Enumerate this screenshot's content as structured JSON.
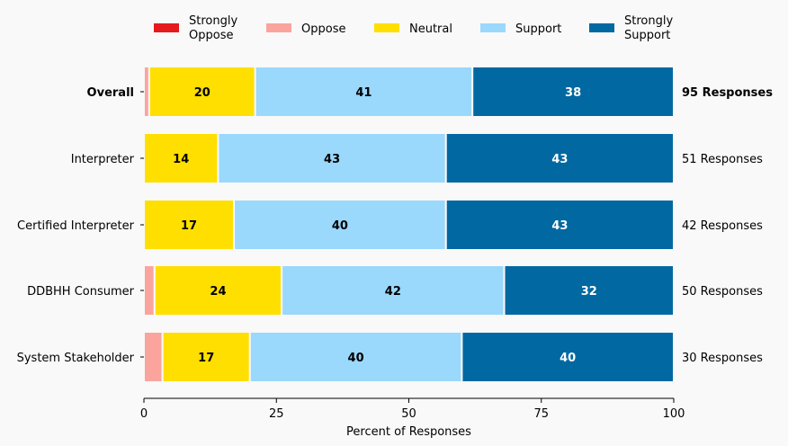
{
  "chart_data": {
    "type": "bar",
    "orientation": "horizontal",
    "stacked": true,
    "categories": [
      "Overall",
      "Interpreter",
      "Certified Interpreter",
      "DDBHH Consumer",
      "System Stakeholder"
    ],
    "response_labels": [
      "95 Responses",
      "51 Responses",
      "42 Responses",
      "50 Responses",
      "30 Responses"
    ],
    "series": [
      {
        "name": "Strongly\nOppose",
        "color": "#e41a1c",
        "values": [
          0,
          0,
          0,
          0,
          0
        ],
        "labels": [
          "",
          "",
          "",
          "",
          ""
        ],
        "label_color": "#000000"
      },
      {
        "name": "Oppose",
        "color": "#fba49d",
        "values": [
          1,
          0,
          0,
          2,
          3.5
        ],
        "labels": [
          "",
          "",
          "",
          "",
          ""
        ],
        "label_color": "#000000"
      },
      {
        "name": "Neutral",
        "color": "#ffdf00",
        "values": [
          20,
          14,
          17,
          24,
          16.5
        ],
        "labels": [
          "20",
          "14",
          "17",
          "24",
          "17"
        ],
        "label_color": "#000000"
      },
      {
        "name": "Support",
        "color": "#9ad8fc",
        "values": [
          41,
          43,
          40,
          42,
          40
        ],
        "labels": [
          "41",
          "43",
          "40",
          "42",
          "40"
        ],
        "label_color": "#000000"
      },
      {
        "name": "Strongly\nSupport",
        "color": "#0268a1",
        "values": [
          38,
          43,
          43,
          32,
          40
        ],
        "labels": [
          "38",
          "43",
          "43",
          "32",
          "40"
        ],
        "label_color": "#ffffff"
      }
    ],
    "xlabel": "Percent of Responses",
    "ylabel": "",
    "xlim": [
      0,
      100
    ],
    "xticks": [
      0,
      25,
      50,
      75,
      100
    ],
    "grid": false,
    "legend_position": "top",
    "bold_category": "Overall"
  }
}
